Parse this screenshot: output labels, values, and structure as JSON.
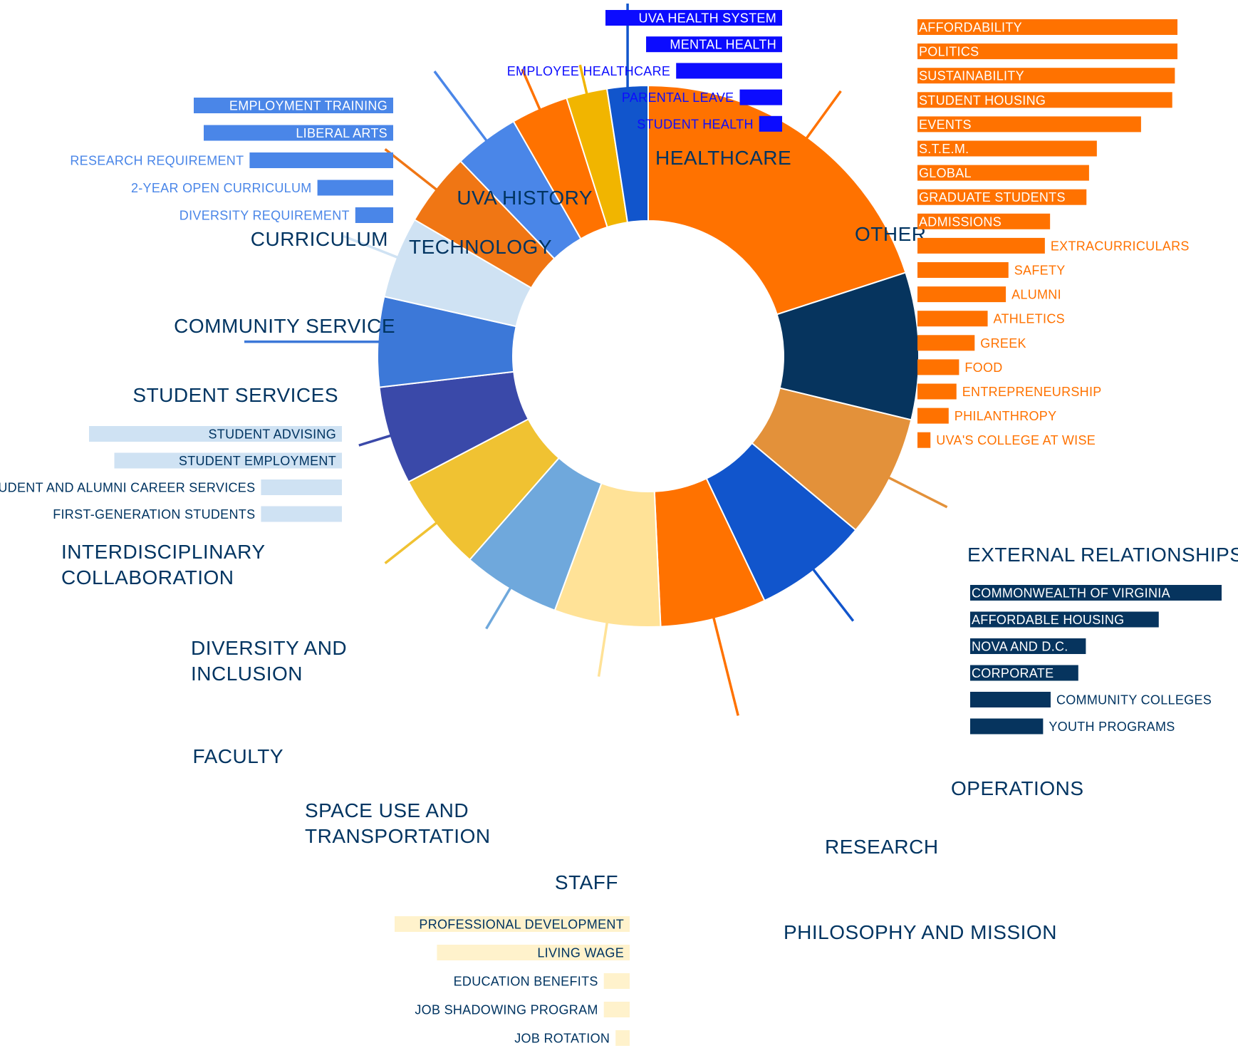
{
  "chart_data": {
    "type": "donut",
    "categories": [
      {
        "name": "OTHER",
        "value": 20.5,
        "color": "#ff7200",
        "text_color": "#003461"
      },
      {
        "name": "EXTERNAL RELATIONSHIPS",
        "value": 9.0,
        "color": "#06345e",
        "text_color": "#003461"
      },
      {
        "name": "OPERATIONS",
        "value": 7.5,
        "color": "#e3913a",
        "text_color": "#003461"
      },
      {
        "name": "RESEARCH",
        "value": 7.0,
        "color": "#1155cc",
        "text_color": "#003461"
      },
      {
        "name": "PHILOSOPHY AND MISSION",
        "value": 6.5,
        "color": "#ff7200",
        "text_color": "#003461"
      },
      {
        "name": "STAFF",
        "value": 6.5,
        "color": "#ffe297",
        "text_color": "#003461"
      },
      {
        "name": "SPACE USE AND TRANSPORTATION",
        "value": 6.0,
        "color": "#6fa8dc",
        "text_color": "#003461"
      },
      {
        "name": "FACULTY",
        "value": 6.0,
        "color": "#f0c232",
        "text_color": "#003461"
      },
      {
        "name": "DIVERSITY AND INCLUSION",
        "value": 6.0,
        "color": "#3a49a9",
        "text_color": "#003461"
      },
      {
        "name": "INTERDISCIPLINARY COLLABORATION",
        "value": 5.5,
        "color": "#3c78d8",
        "text_color": "#003461"
      },
      {
        "name": "STUDENT SERVICES",
        "value": 5.0,
        "color": "#cfe2f3",
        "text_color": "#003461"
      },
      {
        "name": "COMMUNITY SERVICE",
        "value": 4.5,
        "color": "#f07614",
        "text_color": "#003461"
      },
      {
        "name": "CURRICULUM",
        "value": 4.0,
        "color": "#4a86e8",
        "text_color": "#003461"
      },
      {
        "name": "TECHNOLOGY",
        "value": 3.5,
        "color": "#ff7200",
        "text_color": "#003461"
      },
      {
        "name": "UVA HISTORY",
        "value": 2.5,
        "color": "#f1b500",
        "text_color": "#003461"
      },
      {
        "name": "HEALTHCARE",
        "value": 2.5,
        "color": "#1155cc",
        "text_color": "#003461"
      }
    ],
    "subcategories": [
      {
        "parent": "OTHER",
        "color": "#ff7200",
        "items": [
          {
            "label": "AFFORDABILITY",
            "value": 100
          },
          {
            "label": "POLITICS",
            "value": 100
          },
          {
            "label": "SUSTAINABILITY",
            "value": 99
          },
          {
            "label": "STUDENT HOUSING",
            "value": 98
          },
          {
            "label": "EVENTS",
            "value": 86
          },
          {
            "label": "S.T.E.M.",
            "value": 69
          },
          {
            "label": "GLOBAL",
            "value": 66
          },
          {
            "label": "GRADUATE STUDENTS",
            "value": 65
          },
          {
            "label": "ADMISSIONS",
            "value": 51
          },
          {
            "label": "EXTRACURRICULARS",
            "value": 49
          },
          {
            "label": "SAFETY",
            "value": 35
          },
          {
            "label": "ALUMNI",
            "value": 34
          },
          {
            "label": "ATHLETICS",
            "value": 27
          },
          {
            "label": "GREEK",
            "value": 22
          },
          {
            "label": "FOOD",
            "value": 16
          },
          {
            "label": "ENTREPRENEURSHIP",
            "value": 15
          },
          {
            "label": "PHILANTHROPY",
            "value": 12
          },
          {
            "label": "UVA'S COLLEGE AT WISE",
            "value": 5
          }
        ]
      },
      {
        "parent": "EXTERNAL RELATIONSHIPS",
        "color": "#06345e",
        "items": [
          {
            "label": "COMMONWEALTH OF VIRGINIA",
            "value": 100
          },
          {
            "label": "AFFORDABLE HOUSING",
            "value": 75
          },
          {
            "label": "NOVA AND D.C.",
            "value": 46
          },
          {
            "label": "CORPORATE",
            "value": 43
          },
          {
            "label": "COMMUNITY COLLEGES",
            "value": 32
          },
          {
            "label": "YOUTH PROGRAMS",
            "value": 29
          }
        ]
      },
      {
        "parent": "HEALTHCARE",
        "color": "#0c0cff",
        "items": [
          {
            "label": "UVA HEALTH SYSTEM",
            "value": 100
          },
          {
            "label": "MENTAL HEALTH",
            "value": 77
          },
          {
            "label": "EMPLOYEE HEALTHCARE",
            "value": 60
          },
          {
            "label": "PARENTAL LEAVE",
            "value": 24
          },
          {
            "label": "STUDENT HEALTH",
            "value": 13
          }
        ]
      },
      {
        "parent": "CURRICULUM",
        "color": "#4a86e8",
        "items": [
          {
            "label": "EMPLOYMENT TRAINING",
            "value": 100
          },
          {
            "label": "LIBERAL ARTS",
            "value": 95
          },
          {
            "label": "RESEARCH REQUIREMENT",
            "value": 72
          },
          {
            "label": "2-YEAR OPEN CURRICULUM",
            "value": 38
          },
          {
            "label": "DIVERSITY REQUIREMENT",
            "value": 19
          }
        ]
      },
      {
        "parent": "STUDENT SERVICES",
        "color": "#cfe2f3",
        "items": [
          {
            "label": "STUDENT ADVISING",
            "value": 100
          },
          {
            "label": "STUDENT EMPLOYMENT",
            "value": 90
          },
          {
            "label": "STUDENT AND ALUMNI CAREER SERVICES",
            "value": 32
          },
          {
            "label": "FIRST-GENERATION STUDENTS",
            "value": 32
          }
        ]
      },
      {
        "parent": "STAFF",
        "color": "#fff2cc",
        "items": [
          {
            "label": "PROFESSIONAL DEVELOPMENT",
            "value": 100
          },
          {
            "label": "LIVING WAGE",
            "value": 82
          },
          {
            "label": "EDUCATION BENEFITS",
            "value": 11
          },
          {
            "label": "JOB SHADOWING PROGRAM",
            "value": 11
          },
          {
            "label": "JOB ROTATION",
            "value": 6
          }
        ]
      }
    ]
  }
}
